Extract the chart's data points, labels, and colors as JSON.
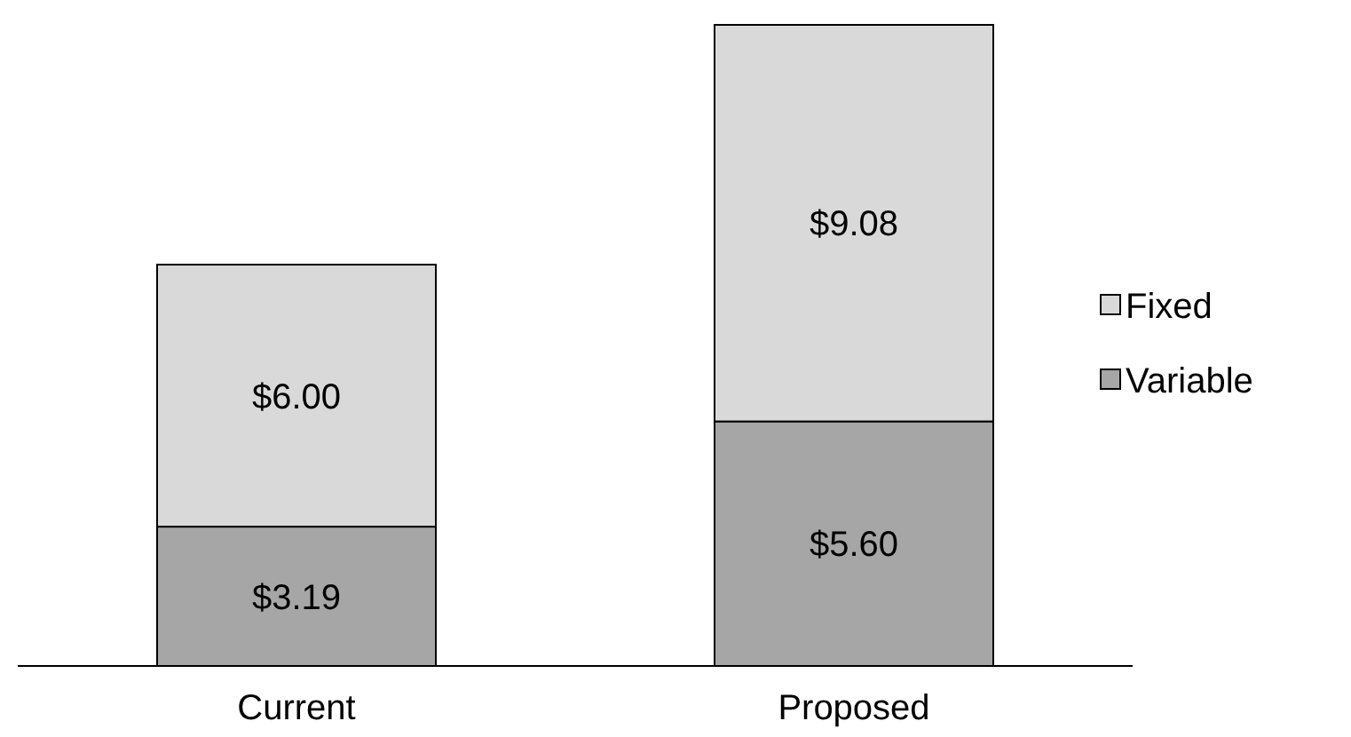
{
  "chart_data": {
    "type": "bar",
    "stacked": true,
    "categories": [
      "Current",
      "Proposed"
    ],
    "series": [
      {
        "name": "Variable",
        "color": "#a6a6a6",
        "values": [
          3.19,
          5.6
        ],
        "value_labels": [
          "$3.19",
          "$5.60"
        ]
      },
      {
        "name": "Fixed",
        "color": "#d9d9d9",
        "values": [
          6.0,
          9.08
        ],
        "value_labels": [
          "$6.00",
          "$9.08"
        ]
      }
    ],
    "legend": "right"
  }
}
